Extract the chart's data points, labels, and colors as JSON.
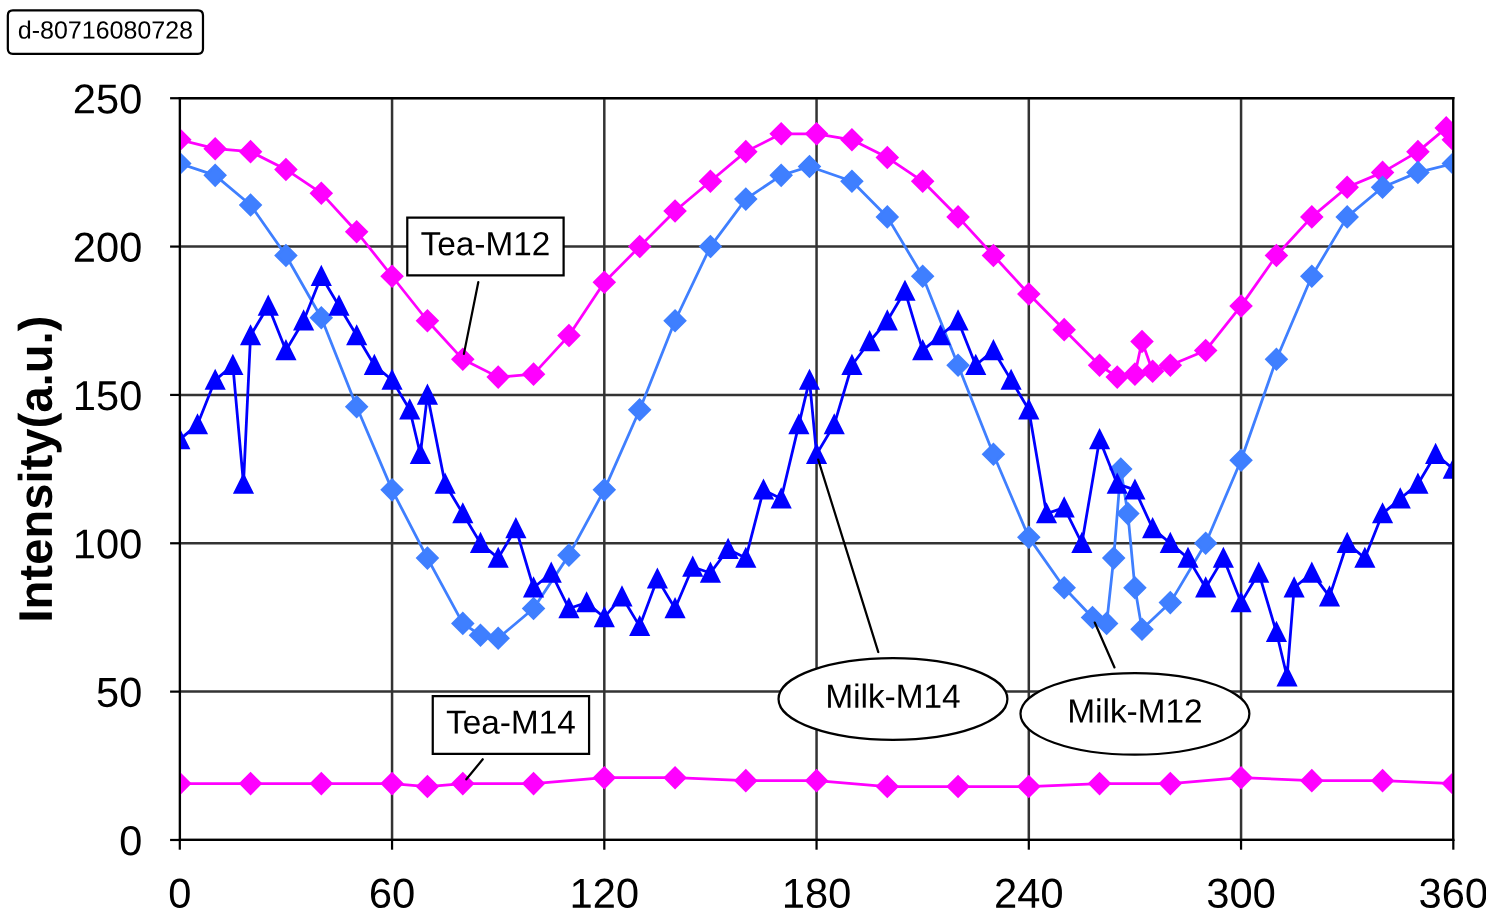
{
  "chart_data": {
    "type": "line",
    "ylabel": "Intensity(a.u.)",
    "annotations": [
      "d-80716080728"
    ],
    "xlim": [
      0,
      360
    ],
    "xticks": [
      0,
      60,
      120,
      180,
      240,
      300,
      360
    ],
    "ylim": [
      0,
      250
    ],
    "yticks": [
      0,
      50,
      100,
      150,
      200,
      250
    ],
    "grid": true,
    "legend": false,
    "line_style": "solid",
    "series": [
      {
        "name": "Tea-M12",
        "color": "#ff00ff",
        "marker": "diamond",
        "x": [
          0,
          10,
          20,
          30,
          40,
          50,
          60,
          70,
          80,
          90,
          100,
          110,
          120,
          130,
          140,
          150,
          160,
          170,
          180,
          190,
          200,
          210,
          220,
          230,
          240,
          250,
          260,
          265,
          270,
          272,
          275,
          280,
          290,
          300,
          310,
          320,
          330,
          340,
          350,
          358,
          360
        ],
        "values": [
          236,
          233,
          232,
          226,
          218,
          205,
          190,
          175,
          162,
          156,
          157,
          170,
          188,
          200,
          212,
          222,
          232,
          238,
          238,
          236,
          230,
          222,
          210,
          197,
          184,
          172,
          160,
          156,
          157,
          168,
          158,
          160,
          165,
          180,
          197,
          210,
          220,
          225,
          232,
          240,
          236
        ]
      },
      {
        "name": "Tea-M14",
        "color": "#ff00ff",
        "marker": "diamond",
        "x": [
          0,
          20,
          40,
          60,
          70,
          80,
          100,
          120,
          140,
          160,
          180,
          200,
          220,
          240,
          260,
          280,
          300,
          320,
          340,
          360
        ],
        "values": [
          19,
          19,
          19,
          19,
          18,
          19,
          19,
          21,
          21,
          20,
          20,
          18,
          18,
          18,
          19,
          19,
          21,
          20,
          20,
          19
        ]
      },
      {
        "name": "Milk-M12",
        "color": "#3f7fff",
        "marker": "diamond",
        "x": [
          0,
          10,
          20,
          30,
          40,
          50,
          60,
          70,
          80,
          85,
          90,
          100,
          110,
          120,
          130,
          140,
          150,
          160,
          170,
          178,
          190,
          200,
          210,
          220,
          230,
          240,
          250,
          258,
          262,
          264,
          266,
          268,
          270,
          272,
          280,
          290,
          300,
          310,
          320,
          330,
          340,
          350,
          360
        ],
        "values": [
          228,
          224,
          214,
          197,
          176,
          146,
          118,
          95,
          73,
          69,
          68,
          78,
          96,
          118,
          145,
          175,
          200,
          216,
          224,
          227,
          222,
          210,
          190,
          160,
          130,
          102,
          85,
          75,
          73,
          95,
          125,
          110,
          85,
          71,
          80,
          100,
          128,
          162,
          190,
          210,
          220,
          225,
          228
        ]
      },
      {
        "name": "Milk-M14",
        "color": "#0000ff",
        "marker": "triangle",
        "x": [
          0,
          5,
          10,
          15,
          18,
          20,
          25,
          30,
          35,
          40,
          45,
          50,
          55,
          60,
          65,
          68,
          70,
          75,
          80,
          85,
          90,
          95,
          100,
          105,
          110,
          115,
          120,
          125,
          130,
          135,
          140,
          145,
          150,
          155,
          160,
          165,
          170,
          175,
          178,
          180,
          185,
          190,
          195,
          200,
          205,
          210,
          215,
          220,
          225,
          230,
          235,
          240,
          245,
          250,
          255,
          260,
          265,
          270,
          275,
          280,
          285,
          290,
          295,
          300,
          305,
          310,
          313,
          315,
          320,
          325,
          330,
          335,
          340,
          345,
          350,
          355,
          360
        ],
        "values": [
          135,
          140,
          155,
          160,
          120,
          170,
          180,
          165,
          175,
          190,
          180,
          170,
          160,
          155,
          145,
          130,
          150,
          120,
          110,
          100,
          95,
          105,
          85,
          90,
          78,
          80,
          75,
          82,
          72,
          88,
          78,
          92,
          90,
          98,
          95,
          118,
          115,
          140,
          155,
          130,
          140,
          160,
          168,
          175,
          185,
          165,
          170,
          175,
          160,
          165,
          155,
          145,
          110,
          112,
          100,
          135,
          120,
          118,
          105,
          100,
          95,
          85,
          95,
          80,
          90,
          70,
          55,
          85,
          90,
          82,
          100,
          95,
          110,
          115,
          120,
          130,
          125
        ]
      }
    ]
  }
}
